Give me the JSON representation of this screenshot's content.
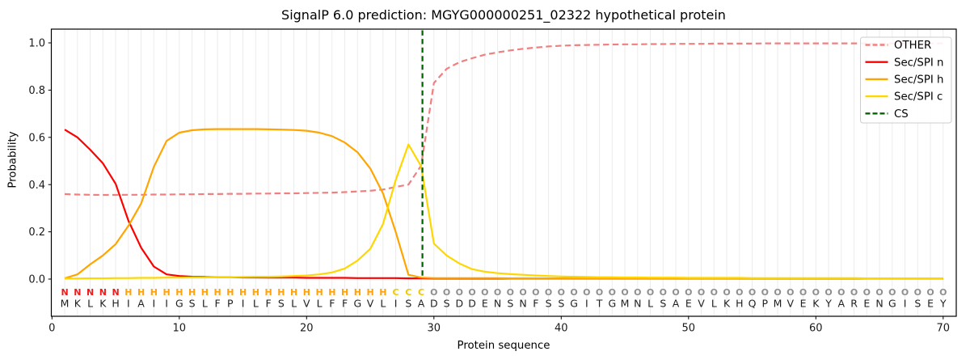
{
  "title": "SignalP 6.0 prediction: MGYG000000251_02322 hypothetical protein",
  "axes": {
    "x_label": "Protein sequence",
    "y_label": "Probability",
    "x_ticks": [
      0,
      10,
      20,
      30,
      40,
      50,
      60,
      70
    ],
    "y_ticks": [
      "0.0",
      "0.2",
      "0.4",
      "0.6",
      "0.8",
      "1.0"
    ],
    "grid": "vertical-per-residue"
  },
  "colors": {
    "grid": "#ececec",
    "spine": "#000000",
    "tick_text": "#1a1a1a",
    "residue_text": "#1f1f1f",
    "legend_border": "#cccccc"
  },
  "legend": {
    "position": "upper-right",
    "entries": [
      {
        "label": "OTHER",
        "color": "#f08080",
        "dashed": true
      },
      {
        "label": "Sec/SPI n",
        "color": "#ff0000",
        "dashed": false
      },
      {
        "label": "Sec/SPI h",
        "color": "#ffa500",
        "dashed": false
      },
      {
        "label": "Sec/SPI c",
        "color": "#ffd700",
        "dashed": false
      },
      {
        "label": "CS",
        "color": "#006400",
        "dashed": true
      }
    ]
  },
  "sequence": {
    "residues": "MKLKHIAIIGSLFPILFSLVLFFGVLISADSDDENSNFSSGITGMNLSAEVLKHQPMVEKYARENGISEY",
    "regions": "NNNNNHHHHHHHHHHHHHHHHHHHHHCCCOOOOOOOOOOOOOOOOOOOOOOOOOOOOOOOOOOOOOOOOO",
    "region_colors": {
      "N": "#ee1c1c",
      "H": "#ffa10a",
      "C": "#eec800",
      "O": "#8f8f8f"
    }
  },
  "chart_data": {
    "type": "line",
    "title": "SignalP 6.0 prediction: MGYG000000251_02322 hypothetical protein",
    "xlabel": "Protein sequence",
    "ylabel": "Probability",
    "xlim": [
      0,
      71
    ],
    "ylim": [
      -0.16,
      1.06
    ],
    "legend_position": "upper right",
    "positions": [
      1,
      2,
      3,
      4,
      5,
      6,
      7,
      8,
      9,
      10,
      11,
      12,
      13,
      14,
      15,
      16,
      17,
      18,
      19,
      20,
      21,
      22,
      23,
      24,
      25,
      26,
      27,
      28,
      29,
      30,
      31,
      32,
      33,
      34,
      35,
      36,
      37,
      38,
      39,
      40,
      41,
      42,
      43,
      44,
      45,
      46,
      47,
      48,
      49,
      50,
      51,
      52,
      53,
      54,
      55,
      56,
      57,
      58,
      59,
      60,
      61,
      62,
      63,
      64,
      65,
      66,
      67,
      68,
      69,
      70
    ],
    "cs_line": {
      "label": "CS",
      "position": 29.1,
      "color": "#006400"
    },
    "series": [
      {
        "name": "OTHER",
        "color": "#f08080",
        "dashed": true,
        "values": [
          0.36,
          0.358,
          0.357,
          0.356,
          0.356,
          0.357,
          0.357,
          0.358,
          0.358,
          0.359,
          0.359,
          0.36,
          0.36,
          0.361,
          0.361,
          0.362,
          0.362,
          0.363,
          0.363,
          0.364,
          0.365,
          0.366,
          0.368,
          0.371,
          0.374,
          0.379,
          0.39,
          0.4,
          0.48,
          0.83,
          0.89,
          0.918,
          0.935,
          0.95,
          0.96,
          0.968,
          0.975,
          0.98,
          0.985,
          0.988,
          0.99,
          0.991,
          0.992,
          0.993,
          0.994,
          0.994,
          0.995,
          0.995,
          0.996,
          0.996,
          0.996,
          0.997,
          0.997,
          0.997,
          0.997,
          0.998,
          0.998,
          0.998,
          0.998,
          0.998,
          0.998,
          0.998,
          0.998,
          0.998,
          0.998,
          0.998,
          0.998,
          0.998,
          0.998,
          0.998
        ]
      },
      {
        "name": "Sec/SPI n",
        "color": "#ff0000",
        "dashed": false,
        "values": [
          0.633,
          0.6,
          0.548,
          0.49,
          0.403,
          0.248,
          0.133,
          0.053,
          0.02,
          0.013,
          0.01,
          0.009,
          0.008,
          0.008,
          0.007,
          0.007,
          0.006,
          0.006,
          0.006,
          0.005,
          0.005,
          0.005,
          0.005,
          0.004,
          0.004,
          0.004,
          0.004,
          0.003,
          0.003,
          0.002,
          0.002,
          0.002,
          0.002,
          0.002,
          0.002,
          0.002,
          0.002,
          0.002,
          0.002,
          0.002,
          0.002,
          0.002,
          0.002,
          0.002,
          0.002,
          0.002,
          0.002,
          0.002,
          0.002,
          0.002,
          0.002,
          0.002,
          0.002,
          0.002,
          0.002,
          0.002,
          0.002,
          0.002,
          0.002,
          0.002,
          0.002,
          0.002,
          0.002,
          0.002,
          0.002,
          0.002,
          0.002,
          0.002,
          0.002,
          0.002
        ]
      },
      {
        "name": "Sec/SPI h",
        "color": "#ffa500",
        "dashed": false,
        "values": [
          0.003,
          0.02,
          0.062,
          0.1,
          0.148,
          0.225,
          0.32,
          0.475,
          0.585,
          0.62,
          0.63,
          0.634,
          0.635,
          0.635,
          0.635,
          0.635,
          0.634,
          0.633,
          0.631,
          0.628,
          0.62,
          0.605,
          0.578,
          0.537,
          0.468,
          0.363,
          0.199,
          0.018,
          0.006,
          0.004,
          0.004,
          0.004,
          0.004,
          0.004,
          0.004,
          0.003,
          0.003,
          0.003,
          0.003,
          0.003,
          0.003,
          0.003,
          0.003,
          0.003,
          0.003,
          0.003,
          0.003,
          0.003,
          0.003,
          0.003,
          0.003,
          0.003,
          0.003,
          0.003,
          0.003,
          0.003,
          0.003,
          0.003,
          0.003,
          0.003,
          0.003,
          0.003,
          0.003,
          0.003,
          0.003,
          0.003,
          0.003,
          0.003,
          0.003,
          0.003
        ]
      },
      {
        "name": "Sec/SPI c",
        "color": "#ffd700",
        "dashed": false,
        "values": [
          0.002,
          0.002,
          0.003,
          0.003,
          0.004,
          0.004,
          0.005,
          0.005,
          0.006,
          0.006,
          0.007,
          0.007,
          0.008,
          0.008,
          0.009,
          0.01,
          0.01,
          0.011,
          0.013,
          0.015,
          0.02,
          0.028,
          0.045,
          0.078,
          0.128,
          0.233,
          0.42,
          0.57,
          0.478,
          0.15,
          0.1,
          0.066,
          0.042,
          0.031,
          0.025,
          0.021,
          0.018,
          0.015,
          0.013,
          0.011,
          0.01,
          0.009,
          0.008,
          0.008,
          0.007,
          0.007,
          0.006,
          0.006,
          0.006,
          0.005,
          0.005,
          0.005,
          0.005,
          0.005,
          0.004,
          0.004,
          0.004,
          0.004,
          0.004,
          0.004,
          0.004,
          0.004,
          0.004,
          0.003,
          0.003,
          0.003,
          0.003,
          0.003,
          0.003,
          0.003
        ]
      }
    ]
  }
}
